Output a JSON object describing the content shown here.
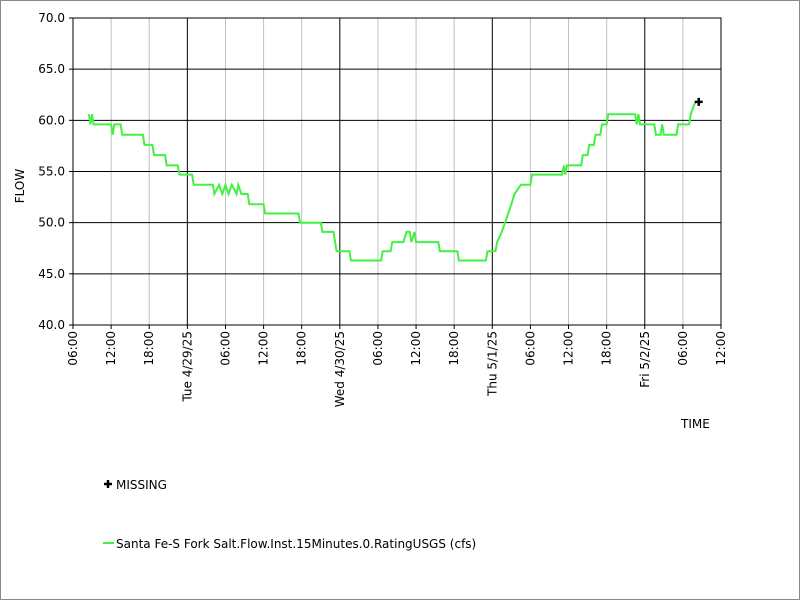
{
  "chart_data": {
    "type": "line",
    "y_label": "FLOW",
    "x_label": "TIME",
    "xlim": [
      "2025-04-28 06:00",
      "2025-05-02 12:00"
    ],
    "xticks": [
      {
        "value": "2025-04-28 06:00",
        "label": "06:00"
      },
      {
        "value": "2025-04-28 12:00",
        "label": "12:00"
      },
      {
        "value": "2025-04-28 18:00",
        "label": "18:00"
      },
      {
        "value": "2025-04-29 00:00",
        "label": "Tue 4/29/25"
      },
      {
        "value": "2025-04-29 06:00",
        "label": "06:00"
      },
      {
        "value": "2025-04-29 12:00",
        "label": "12:00"
      },
      {
        "value": "2025-04-29 18:00",
        "label": "18:00"
      },
      {
        "value": "2025-04-30 00:00",
        "label": "Wed 4/30/25"
      },
      {
        "value": "2025-04-30 06:00",
        "label": "06:00"
      },
      {
        "value": "2025-04-30 12:00",
        "label": "12:00"
      },
      {
        "value": "2025-04-30 18:00",
        "label": "18:00"
      },
      {
        "value": "2025-05-01 00:00",
        "label": "Thu 5/1/25"
      },
      {
        "value": "2025-05-01 06:00",
        "label": "06:00"
      },
      {
        "value": "2025-05-01 12:00",
        "label": "12:00"
      },
      {
        "value": "2025-05-01 18:00",
        "label": "18:00"
      },
      {
        "value": "2025-05-02 00:00",
        "label": "Fri 5/2/25"
      },
      {
        "value": "2025-05-02 06:00",
        "label": "06:00"
      },
      {
        "value": "2025-05-02 12:00",
        "label": "12:00"
      }
    ],
    "ylim": [
      40,
      70
    ],
    "yticks": [
      {
        "value": 40,
        "label": "40.0"
      },
      {
        "value": 45,
        "label": "45.0"
      },
      {
        "value": 50,
        "label": "50.0"
      },
      {
        "value": 55,
        "label": "55.0"
      },
      {
        "value": 60,
        "label": "60.0"
      },
      {
        "value": 65,
        "label": "65.0"
      },
      {
        "value": 70,
        "label": "70.0"
      }
    ],
    "grid": true,
    "grid_color": "#000000",
    "minor_grid_color": "#c0c0c0",
    "series": [
      {
        "name": "Santa Fe-S Fork Salt.Flow.Inst.15Minutes.0.RatingUSGS (cfs)",
        "color": "#44f044",
        "x": [
          "2025-04-28 08:30",
          "2025-04-28 08:45",
          "2025-04-28 09:00",
          "2025-04-28 09:15",
          "2025-04-28 12:00",
          "2025-04-28 12:15",
          "2025-04-28 12:30",
          "2025-04-28 13:30",
          "2025-04-28 13:45",
          "2025-04-28 17:00",
          "2025-04-28 17:15",
          "2025-04-28 18:30",
          "2025-04-28 18:45",
          "2025-04-28 20:30",
          "2025-04-28 20:45",
          "2025-04-28 22:30",
          "2025-04-28 22:45",
          "2025-04-29 00:45",
          "2025-04-29 01:00",
          "2025-04-29 04:00",
          "2025-04-29 04:15",
          "2025-04-29 05:00",
          "2025-04-29 05:30",
          "2025-04-29 06:00",
          "2025-04-29 06:30",
          "2025-04-29 07:00",
          "2025-04-29 07:45",
          "2025-04-29 08:00",
          "2025-04-29 08:30",
          "2025-04-29 09:30",
          "2025-04-29 09:45",
          "2025-04-29 12:00",
          "2025-04-29 12:15",
          "2025-04-29 17:30",
          "2025-04-29 17:45",
          "2025-04-29 21:00",
          "2025-04-29 21:15",
          "2025-04-29 23:00",
          "2025-04-29 23:15",
          "2025-04-29 23:30",
          "2025-04-30 01:30",
          "2025-04-30 01:45",
          "2025-04-30 06:30",
          "2025-04-30 06:45",
          "2025-04-30 08:00",
          "2025-04-30 08:15",
          "2025-04-30 10:00",
          "2025-04-30 10:30",
          "2025-04-30 11:00",
          "2025-04-30 11:15",
          "2025-04-30 11:45",
          "2025-04-30 12:00",
          "2025-04-30 15:30",
          "2025-04-30 15:45",
          "2025-04-30 18:30",
          "2025-04-30 18:45",
          "2025-04-30 23:00",
          "2025-04-30 23:15",
          "2025-05-01 00:30",
          "2025-05-01 00:45",
          "2025-05-01 01:30",
          "2025-05-01 02:00",
          "2025-05-01 02:30",
          "2025-05-01 03:00",
          "2025-05-01 03:30",
          "2025-05-01 04:30",
          "2025-05-01 06:00",
          "2025-05-01 06:15",
          "2025-05-01 11:00",
          "2025-05-01 11:15",
          "2025-05-01 11:30",
          "2025-05-01 11:45",
          "2025-05-01 14:00",
          "2025-05-01 14:15",
          "2025-05-01 15:00",
          "2025-05-01 15:15",
          "2025-05-01 16:00",
          "2025-05-01 16:15",
          "2025-05-01 17:00",
          "2025-05-01 17:15",
          "2025-05-01 18:00",
          "2025-05-01 18:15",
          "2025-05-01 22:30",
          "2025-05-01 22:45",
          "2025-05-01 23:00",
          "2025-05-01 23:15",
          "2025-05-02 01:30",
          "2025-05-02 01:45",
          "2025-05-02 02:30",
          "2025-05-02 02:45",
          "2025-05-02 03:00",
          "2025-05-02 05:00",
          "2025-05-02 05:15",
          "2025-05-02 07:00",
          "2025-05-02 07:15",
          "2025-05-02 07:45",
          "2025-05-02 08:00"
        ],
        "values": [
          60.6,
          59.6,
          60.6,
          59.6,
          59.6,
          58.6,
          59.6,
          59.6,
          58.6,
          58.6,
          57.6,
          57.6,
          56.6,
          56.6,
          55.6,
          55.6,
          54.7,
          54.7,
          53.7,
          53.7,
          52.8,
          53.7,
          52.8,
          53.7,
          52.8,
          53.7,
          52.8,
          53.7,
          52.8,
          52.8,
          51.8,
          51.8,
          50.9,
          50.9,
          50.0,
          50.0,
          49.1,
          49.1,
          48.1,
          47.2,
          47.2,
          46.3,
          46.3,
          47.2,
          47.2,
          48.1,
          48.1,
          49.1,
          49.1,
          48.1,
          49.1,
          48.1,
          48.1,
          47.2,
          47.2,
          46.3,
          46.3,
          47.2,
          47.2,
          48.1,
          49.1,
          50.0,
          50.9,
          51.8,
          52.8,
          53.7,
          53.7,
          54.7,
          54.7,
          55.6,
          54.7,
          55.6,
          55.6,
          56.6,
          56.6,
          57.6,
          57.6,
          58.6,
          58.6,
          59.6,
          59.6,
          60.6,
          60.6,
          59.6,
          60.6,
          59.6,
          59.6,
          58.6,
          58.6,
          59.6,
          58.6,
          58.6,
          59.6,
          59.6,
          60.6,
          61.5,
          61.8
        ]
      },
      {
        "name": "MISSING",
        "color": "#000000",
        "marker": "plus",
        "x": [
          "2025-05-02 08:30"
        ],
        "values": [
          61.8
        ]
      }
    ]
  }
}
